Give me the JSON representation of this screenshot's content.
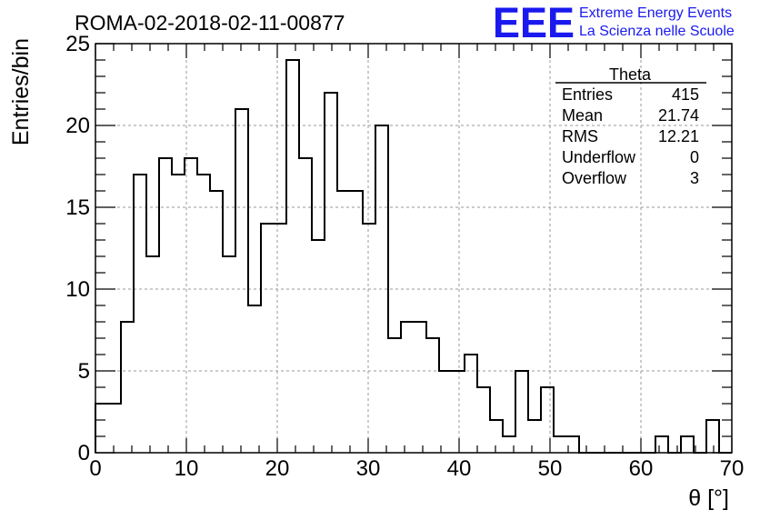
{
  "chart_data": {
    "type": "bar",
    "title": "ROMA-02-2018-02-11-00877",
    "xlabel": "θ [°]",
    "ylabel": "Entries/bin",
    "xlim": [
      0,
      70
    ],
    "ylim": [
      0,
      25
    ],
    "bin_width": 1.4,
    "x_ticks": [
      "0",
      "10",
      "20",
      "30",
      "40",
      "50",
      "60",
      "70"
    ],
    "y_ticks": [
      "0",
      "5",
      "10",
      "15",
      "20",
      "25"
    ],
    "values": [
      3,
      3,
      8,
      17,
      12,
      18,
      17,
      18,
      17,
      16,
      12,
      21,
      9,
      14,
      14,
      24,
      18,
      13,
      22,
      16,
      16,
      14,
      20,
      7,
      8,
      8,
      7,
      5,
      5,
      6,
      4,
      2,
      1,
      5,
      2,
      4,
      1,
      1,
      0,
      0,
      0,
      0,
      0,
      0,
      1,
      0,
      1,
      0,
      2,
      0
    ],
    "grid": true,
    "stats_box": {
      "title": "Theta",
      "rows": [
        {
          "label": "Entries",
          "value": "415"
        },
        {
          "label": "Mean",
          "value": "21.74"
        },
        {
          "label": "RMS",
          "value": "12.21"
        },
        {
          "label": "Underflow",
          "value": "0"
        },
        {
          "label": "Overflow",
          "value": "3"
        }
      ]
    }
  },
  "logo": {
    "mark": "EEE",
    "line1": "Extreme Energy Events",
    "line2": "La Scienza nelle Scuole",
    "color": "#1a1aee"
  }
}
